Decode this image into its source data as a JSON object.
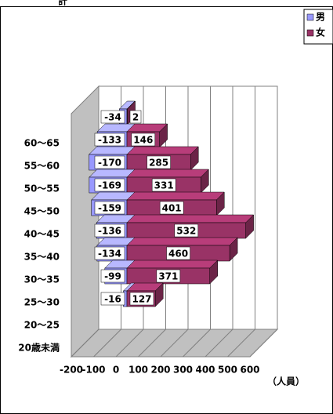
{
  "chart_data": {
    "type": "bar",
    "orientation": "horizontal",
    "title": "計",
    "categories": [
      "60～65",
      "55～60",
      "50～55",
      "45～50",
      "40～45",
      "35～40",
      "30～35",
      "25～30",
      "20～25",
      "20歳未満"
    ],
    "series": [
      {
        "name": "男",
        "color": "#9999ff",
        "values": [
          -34,
          -133,
          -170,
          -169,
          -159,
          -136,
          -134,
          -99,
          -16,
          null
        ]
      },
      {
        "name": "女",
        "color": "#993366",
        "values": [
          2,
          146,
          285,
          331,
          401,
          532,
          460,
          371,
          127,
          null
        ]
      }
    ],
    "xlim": [
      -200,
      600
    ],
    "xticks": [
      -200,
      -100,
      0,
      100,
      200,
      300,
      400,
      500,
      600
    ],
    "xlabel": "（人員）",
    "grid": true,
    "legend": "top-right"
  }
}
